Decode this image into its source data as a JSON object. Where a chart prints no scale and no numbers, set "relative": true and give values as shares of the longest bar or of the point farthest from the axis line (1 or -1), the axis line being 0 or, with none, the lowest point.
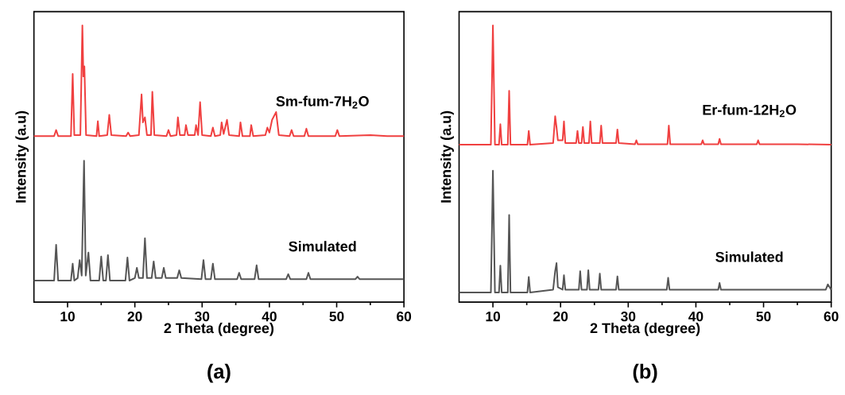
{
  "chart_data": [
    {
      "type": "line",
      "relative": true,
      "xlabel": "2 Theta (degree)",
      "ylabel": "Intensity (a.u)",
      "xlim": [
        5,
        60
      ],
      "xticks": [
        10,
        20,
        30,
        40,
        50,
        60
      ],
      "annotations": [
        "(a)"
      ],
      "series": [
        {
          "name": "Sm-fum-7H$_{2}$O",
          "color": "#f04040",
          "x": [
            5,
            8.0,
            8.3,
            8.6,
            10.5,
            10.76,
            11.0,
            11.9,
            12.2,
            12.35,
            12.5,
            12.75,
            14.3,
            14.5,
            14.7,
            15.9,
            16.2,
            16.5,
            18.7,
            19.0,
            19.3,
            20.6,
            21.0,
            21.2,
            21.5,
            21.8,
            22.4,
            22.6,
            22.9,
            24.7,
            25.0,
            25.3,
            26.2,
            26.4,
            26.7,
            27.4,
            27.6,
            27.9,
            28.9,
            29.1,
            29.4,
            29.7,
            30.0,
            31.3,
            31.6,
            31.9,
            32.7,
            32.9,
            33.2,
            33.7,
            34.0,
            35.5,
            35.7,
            36.0,
            37.1,
            37.3,
            37.6,
            39.4,
            39.7,
            40.0,
            40.4,
            41.0,
            41.4,
            43.0,
            43.3,
            43.6,
            45.2,
            45.5,
            45.8,
            49.8,
            50.1,
            50.4,
            55,
            57.5,
            60
          ],
          "values": [
            0.6,
            0.6,
            0.622,
            0.6,
            0.6,
            0.825,
            0.604,
            0.604,
            1.0,
            0.816,
            0.852,
            0.604,
            0.6,
            0.654,
            0.6,
            0.604,
            0.677,
            0.604,
            0.6,
            0.613,
            0.6,
            0.604,
            0.751,
            0.65,
            0.668,
            0.604,
            0.604,
            0.76,
            0.604,
            0.6,
            0.622,
            0.6,
            0.604,
            0.668,
            0.604,
            0.604,
            0.64,
            0.604,
            0.604,
            0.64,
            0.604,
            0.723,
            0.604,
            0.6,
            0.631,
            0.6,
            0.604,
            0.65,
            0.608,
            0.659,
            0.604,
            0.6,
            0.65,
            0.6,
            0.6,
            0.64,
            0.6,
            0.604,
            0.631,
            0.613,
            0.659,
            0.687,
            0.604,
            0.6,
            0.622,
            0.6,
            0.6,
            0.627,
            0.6,
            0.6,
            0.622,
            0.6,
            0.604,
            0.6,
            0.6
          ]
        },
        {
          "name": "Simulated",
          "color": "#555555",
          "x": [
            5,
            8.0,
            8.3,
            8.6,
            10.5,
            10.76,
            11.0,
            11.5,
            11.8,
            12.1,
            12.45,
            12.7,
            13.1,
            13.4,
            14.7,
            15.0,
            15.3,
            15.7,
            16.0,
            16.3,
            18.6,
            18.9,
            19.2,
            20.0,
            20.3,
            20.6,
            21.2,
            21.5,
            21.8,
            22.5,
            22.8,
            23.1,
            24.0,
            24.3,
            24.6,
            26.3,
            26.6,
            26.9,
            29.9,
            30.2,
            30.5,
            31.3,
            31.6,
            31.9,
            35.2,
            35.5,
            35.8,
            37.8,
            38.1,
            38.4,
            42.5,
            42.8,
            43.1,
            45.5,
            45.8,
            46.1,
            52.8,
            53.1,
            53.4,
            57,
            60
          ],
          "values": [
            0.078,
            0.078,
            0.207,
            0.078,
            0.078,
            0.139,
            0.078,
            0.087,
            0.152,
            0.096,
            0.511,
            0.096,
            0.179,
            0.078,
            0.078,
            0.165,
            0.078,
            0.078,
            0.17,
            0.078,
            0.078,
            0.161,
            0.078,
            0.087,
            0.124,
            0.087,
            0.087,
            0.231,
            0.087,
            0.087,
            0.147,
            0.087,
            0.087,
            0.124,
            0.087,
            0.087,
            0.115,
            0.087,
            0.083,
            0.152,
            0.083,
            0.083,
            0.139,
            0.083,
            0.083,
            0.106,
            0.083,
            0.083,
            0.133,
            0.083,
            0.083,
            0.101,
            0.083,
            0.083,
            0.106,
            0.083,
            0.083,
            0.092,
            0.083,
            0.083,
            0.083
          ]
        }
      ]
    },
    {
      "type": "line",
      "relative": true,
      "xlabel": "2 Theta (degree)",
      "ylabel": "Intensity (a.u)",
      "xlim": [
        5,
        60
      ],
      "xticks": [
        10,
        20,
        30,
        40,
        50,
        60
      ],
      "annotations": [
        "(b)"
      ],
      "series": [
        {
          "name": "Er-fum-12H$_{2}$O",
          "color": "#f04040",
          "x": [
            5,
            9.7,
            10.0,
            10.3,
            10.9,
            11.1,
            11.3,
            12.2,
            12.4,
            12.6,
            15.1,
            15.3,
            15.5,
            18.9,
            19.2,
            19.4,
            19.6,
            20.3,
            20.5,
            20.7,
            22.3,
            22.5,
            22.7,
            23.1,
            23.3,
            23.5,
            24.2,
            24.4,
            24.6,
            25.8,
            26.0,
            26.2,
            28.2,
            28.4,
            28.6,
            31.0,
            31.2,
            31.4,
            35.8,
            36.0,
            36.2,
            40.8,
            41.0,
            41.2,
            43.3,
            43.5,
            43.7,
            49.0,
            49.2,
            49.4,
            55,
            60
          ],
          "values": [
            0.569,
            0.569,
            1.0,
            0.569,
            0.569,
            0.643,
            0.569,
            0.569,
            0.764,
            0.569,
            0.569,
            0.619,
            0.569,
            0.575,
            0.672,
            0.633,
            0.585,
            0.585,
            0.653,
            0.575,
            0.575,
            0.619,
            0.575,
            0.575,
            0.633,
            0.575,
            0.575,
            0.653,
            0.575,
            0.575,
            0.638,
            0.575,
            0.575,
            0.624,
            0.575,
            0.571,
            0.585,
            0.571,
            0.571,
            0.638,
            0.571,
            0.571,
            0.585,
            0.571,
            0.571,
            0.59,
            0.571,
            0.571,
            0.585,
            0.571,
            0.571,
            0.569
          ]
        },
        {
          "name": "Simulated",
          "color": "#555555",
          "x": [
            5,
            9.7,
            10.0,
            10.3,
            10.9,
            11.1,
            11.3,
            12.2,
            12.4,
            12.6,
            15.1,
            15.3,
            15.5,
            18.9,
            19.2,
            19.4,
            19.6,
            20.3,
            20.5,
            20.7,
            22.7,
            22.9,
            23.1,
            23.9,
            24.1,
            24.3,
            25.6,
            25.8,
            26.0,
            28.2,
            28.4,
            28.6,
            35.7,
            35.9,
            36.1,
            43.3,
            43.5,
            43.7,
            59.2,
            59.5,
            60
          ],
          "values": [
            0.035,
            0.035,
            0.475,
            0.035,
            0.035,
            0.132,
            0.035,
            0.035,
            0.315,
            0.035,
            0.035,
            0.091,
            0.035,
            0.045,
            0.112,
            0.141,
            0.054,
            0.045,
            0.097,
            0.045,
            0.045,
            0.112,
            0.045,
            0.045,
            0.115,
            0.045,
            0.045,
            0.103,
            0.045,
            0.045,
            0.093,
            0.045,
            0.045,
            0.088,
            0.045,
            0.045,
            0.069,
            0.045,
            0.045,
            0.064,
            0.045
          ]
        }
      ]
    }
  ]
}
